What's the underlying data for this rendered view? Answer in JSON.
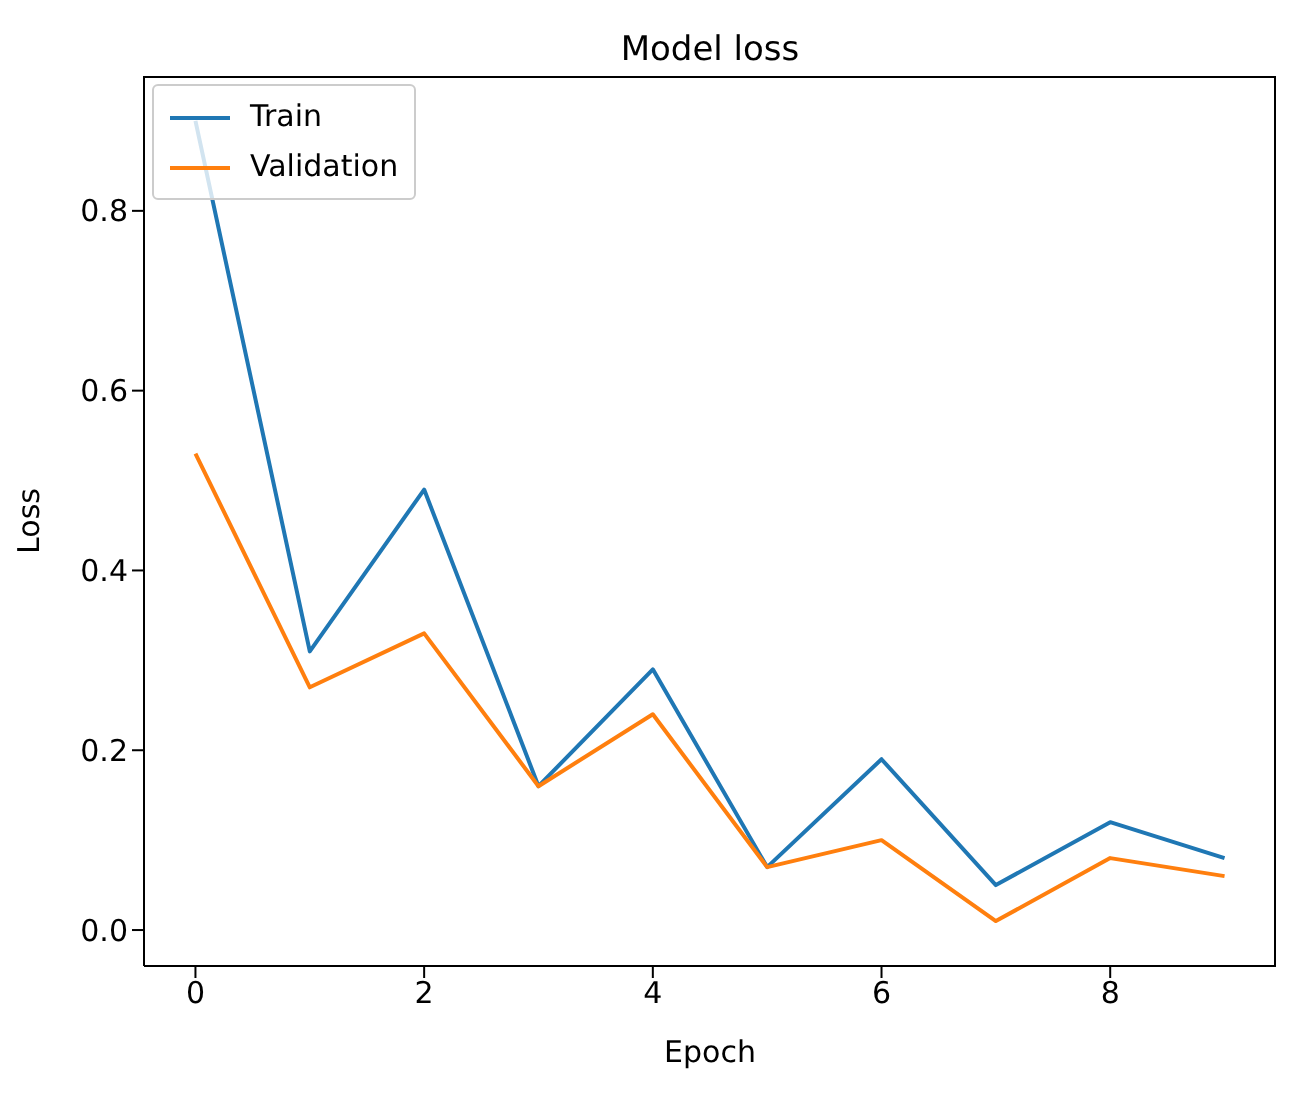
{
  "chart_data": {
    "type": "line",
    "title": "Model loss",
    "xlabel": "Epoch",
    "ylabel": "Loss",
    "x": [
      0,
      1,
      2,
      3,
      4,
      5,
      6,
      7,
      8,
      9
    ],
    "series": [
      {
        "name": "Train",
        "color": "#1f77b4",
        "values": [
          0.9,
          0.31,
          0.49,
          0.16,
          0.29,
          0.07,
          0.19,
          0.05,
          0.12,
          0.08
        ]
      },
      {
        "name": "Validation",
        "color": "#ff7f0e",
        "values": [
          0.53,
          0.27,
          0.33,
          0.16,
          0.24,
          0.07,
          0.1,
          0.01,
          0.08,
          0.06
        ]
      }
    ],
    "xlim": [
      -0.45,
      9.45
    ],
    "xticks": [
      0,
      2,
      4,
      6,
      8
    ],
    "ylim": [
      -0.04,
      0.95
    ],
    "yticks": [
      {
        "value": 0,
        "label": "0.0"
      },
      {
        "value": 0.2,
        "label": "0.2"
      },
      {
        "value": 0.4,
        "label": "0.4"
      },
      {
        "value": 0.6,
        "label": "0.6"
      },
      {
        "value": 0.8,
        "label": "0.8"
      }
    ],
    "legend": "top left",
    "grid": false,
    "marker": "none",
    "line_style": "solid"
  }
}
